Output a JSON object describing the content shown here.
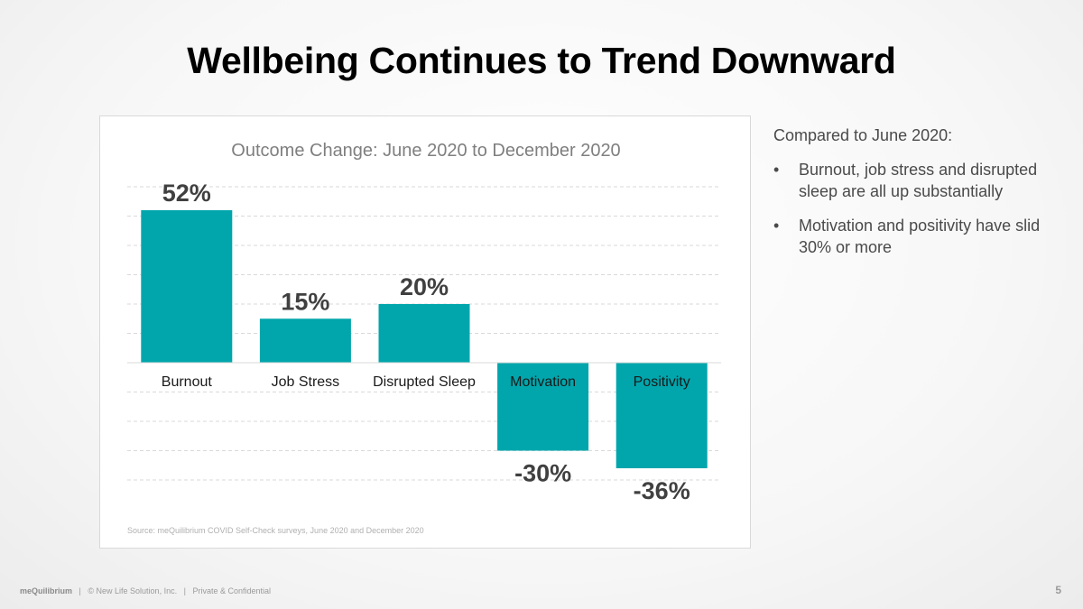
{
  "slide": {
    "title": "Wellbeing Continues to Trend Downward",
    "notes_intro": "Compared to June 2020:",
    "notes_bullets": [
      "Burnout, job stress and disrupted sleep are all up substantially",
      "Motivation and positivity have slid 30% or more"
    ],
    "footer_brand": "meQuilibrium",
    "footer_separator": "|",
    "footer_copyright": "© New Life Solution, Inc.",
    "footer_confidential": "Private & Confidential",
    "page_number": "5"
  },
  "colors": {
    "bar": "#00A6AC",
    "title": "#000000",
    "chart_title": "#7f7f7f",
    "value_label": "#404040",
    "gridline": "#d9d9d9"
  },
  "chart_data": {
    "type": "bar",
    "title": "Outcome Change: June 2020 to December 2020",
    "categories": [
      "Burnout",
      "Job Stress",
      "Disrupted Sleep",
      "Motivation",
      "Positivity"
    ],
    "values": [
      52,
      15,
      20,
      -30,
      -36
    ],
    "value_labels": [
      "52%",
      "15%",
      "20%",
      "-30%",
      "-36%"
    ],
    "xlabel": "",
    "ylabel": "",
    "ylim": [
      -50,
      60
    ],
    "grid": true,
    "legend": "none",
    "source": "Source: meQuilibrium COVID Self-Check surveys, June 2020 and December 2020"
  }
}
